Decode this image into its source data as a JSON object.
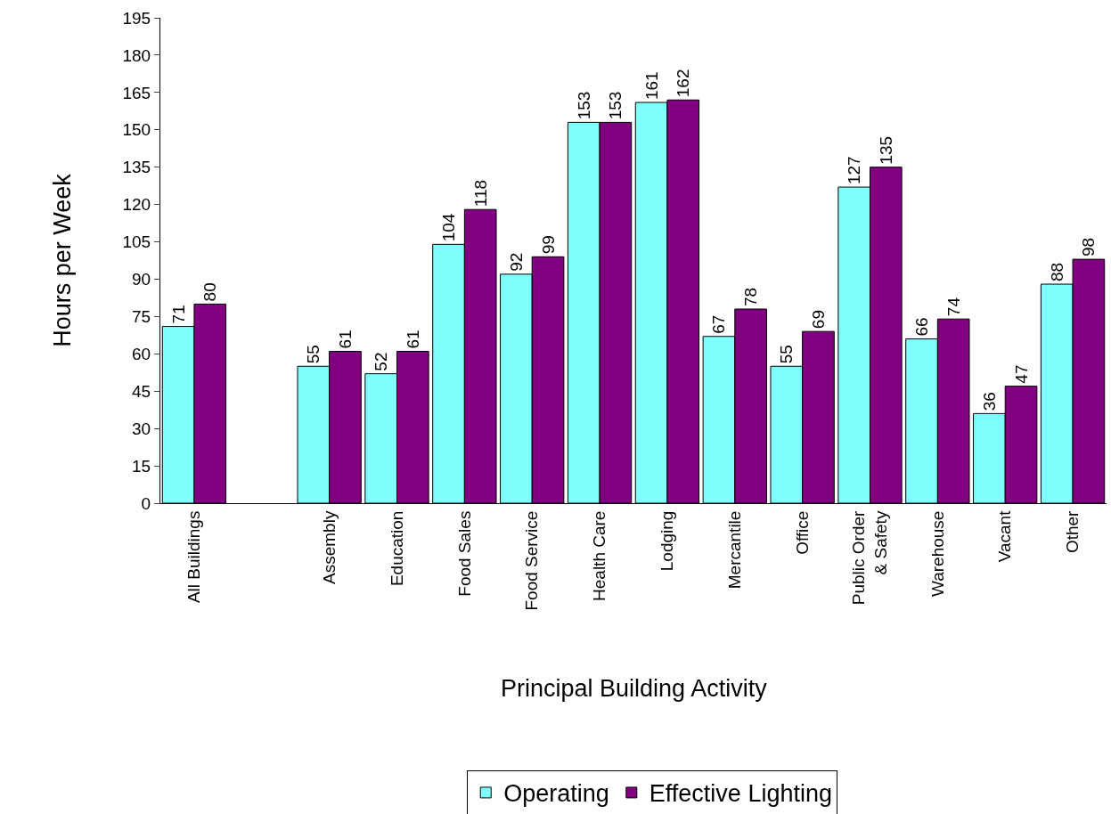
{
  "chart_data": {
    "type": "bar",
    "xlabel": "Principal Building Activity",
    "ylabel": "Hours per Week",
    "categories": [
      "All Buildings",
      null,
      "Assembly",
      "Education",
      "Food Sales",
      "Food Service",
      "Health Care",
      "Lodging",
      "Mercantile",
      "Office",
      "Public Order & Safety",
      "Warehouse",
      "Vacant",
      "Other"
    ],
    "series": [
      {
        "name": "Operating",
        "color": "#80ffff",
        "values": [
          71,
          null,
          55,
          52,
          104,
          92,
          153,
          161,
          67,
          55,
          127,
          66,
          36,
          88
        ]
      },
      {
        "name": "Effective Lighting",
        "color": "#800080",
        "values": [
          80,
          null,
          61,
          61,
          118,
          99,
          153,
          162,
          78,
          69,
          135,
          74,
          47,
          98
        ]
      }
    ],
    "ylim": [
      0,
      195
    ],
    "yticks": [
      0,
      15,
      30,
      45,
      60,
      75,
      90,
      105,
      120,
      135,
      150,
      165,
      180,
      195
    ],
    "data_labels": true,
    "grid": false,
    "legend": "bottom"
  }
}
